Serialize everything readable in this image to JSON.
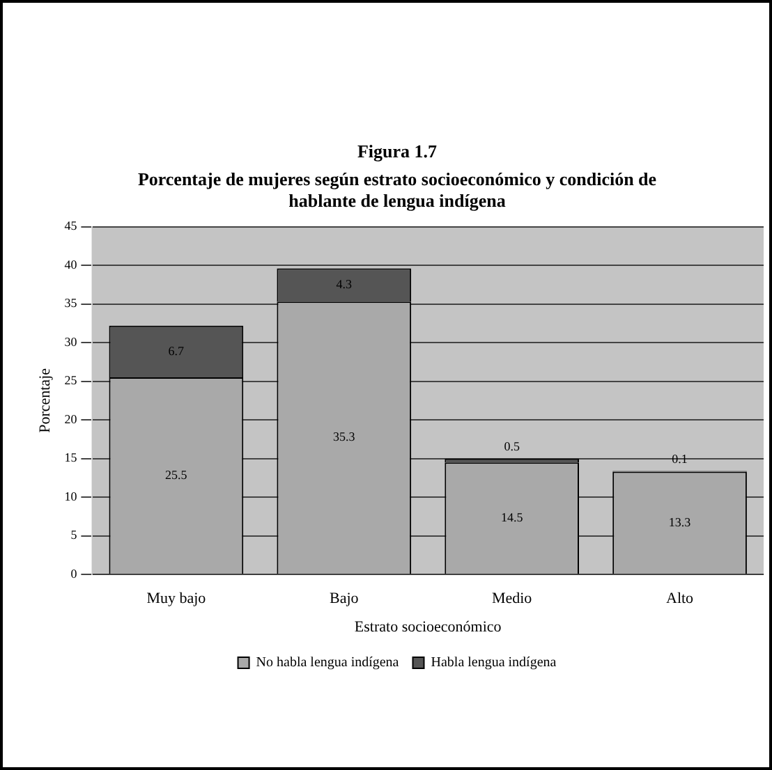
{
  "chart_data": {
    "type": "bar",
    "title": "Figura 1.7",
    "subtitle": "Porcentaje de mujeres según estrato socioeconómico y condición de hablante de lengua indígena",
    "xlabel": "Estrato socioeconómico",
    "ylabel": "Porcentaje",
    "categories": [
      "Muy bajo",
      "Bajo",
      "Medio",
      "Alto"
    ],
    "series": [
      {
        "name": "No habla lengua indígena",
        "color": "#a9a9a9",
        "values": [
          25.5,
          35.3,
          14.5,
          13.3
        ]
      },
      {
        "name": "Habla lengua indígena",
        "color": "#555555",
        "values": [
          6.7,
          4.3,
          0.5,
          0.1
        ]
      }
    ],
    "stacked": true,
    "ylim": [
      0,
      45
    ],
    "yticks": [
      0,
      5,
      10,
      15,
      20,
      25,
      30,
      35,
      40,
      45
    ],
    "grid": "y",
    "legend": "bottom",
    "data_labels": true
  }
}
